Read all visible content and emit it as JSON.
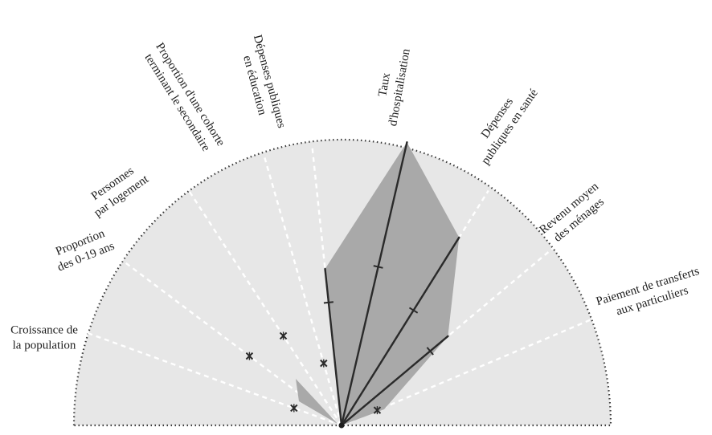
{
  "diagram": {
    "type": "semi-circular radial indicator chart",
    "colors": {
      "background": "#ffffff",
      "half_disc": "#e7e7e7",
      "outline": "#3a3a3a",
      "spoke_guides": "#ffffff",
      "shaded_profile": "#a9a9a9",
      "bars": "#2a2a2a"
    },
    "axes": [
      {
        "id": "croissance",
        "label_lines": [
          "Croissance de",
          "la population"
        ],
        "level": 0.18,
        "marker_type": "star"
      },
      {
        "id": "proportion-0-19",
        "label_lines": [
          "Proportion",
          "des 0-19 ans"
        ],
        "level": 0.41,
        "marker_type": "star"
      },
      {
        "id": "personnes-logement",
        "label_lines": [
          "Personnes",
          "par logement"
        ],
        "level": 0.38,
        "marker_type": "star"
      },
      {
        "id": "cohorte-secondaire",
        "label_lines": [
          "Proportion d'une cohorte",
          "terminant le secondaire"
        ],
        "level": 0.23,
        "marker_type": "star"
      },
      {
        "id": "depenses-education",
        "label_lines": [
          "Dépenses publiques",
          "en éducation"
        ],
        "level": 0.56,
        "marker_type": "bar",
        "marker_at": 0.44
      },
      {
        "id": "taux-hospitalisation",
        "label_lines": [
          "Taux",
          "d'hospitalisation"
        ],
        "level": 1.0,
        "marker_type": "bar",
        "marker_at": 0.56
      },
      {
        "id": "depenses-sante",
        "label_lines": [
          "Dépenses",
          "publiques en santé"
        ],
        "level": 0.8,
        "marker_type": "bar",
        "marker_at": 0.49
      },
      {
        "id": "revenu-menages",
        "label_lines": [
          "Revenu moyen",
          "des ménages"
        ],
        "level": 0.48,
        "marker_type": "bar",
        "marker_at": 0.4
      },
      {
        "id": "transferts",
        "label_lines": [
          "Paiement de transferts",
          "aux particuliers"
        ],
        "level": 0.14,
        "marker_type": "star"
      }
    ]
  }
}
